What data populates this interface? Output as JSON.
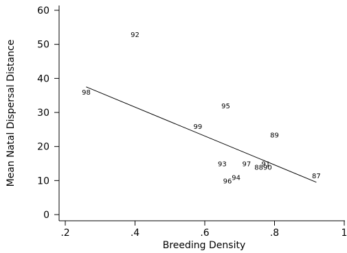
{
  "chart_data": {
    "type": "scatter",
    "title": "",
    "xlabel": "Breeding Density",
    "ylabel": "Mean Natal Dispersal Distance",
    "xlim": [
      0.2,
      1.0
    ],
    "ylim": [
      0,
      60
    ],
    "x_ticks": [
      0.2,
      0.4,
      0.6,
      0.8,
      1.0
    ],
    "x_tick_labels": [
      ".2",
      ".4",
      ".6",
      ".8",
      "1"
    ],
    "y_ticks": [
      0,
      10,
      20,
      30,
      40,
      50,
      60
    ],
    "y_tick_labels": [
      "0",
      "10",
      "20",
      "30",
      "40",
      "50",
      "60"
    ],
    "grid": false,
    "points": [
      {
        "label": "92",
        "x": 0.4,
        "y": 53
      },
      {
        "label": "98",
        "x": 0.26,
        "y": 36
      },
      {
        "label": "95",
        "x": 0.66,
        "y": 32
      },
      {
        "label": "99",
        "x": 0.58,
        "y": 26
      },
      {
        "label": "89",
        "x": 0.8,
        "y": 23.5
      },
      {
        "label": "93",
        "x": 0.65,
        "y": 15
      },
      {
        "label": "97",
        "x": 0.72,
        "y": 15
      },
      {
        "label": "91",
        "x": 0.775,
        "y": 15
      },
      {
        "label": "88",
        "x": 0.755,
        "y": 14
      },
      {
        "label": "90",
        "x": 0.78,
        "y": 14
      },
      {
        "label": "87",
        "x": 0.92,
        "y": 11.5
      },
      {
        "label": "94",
        "x": 0.69,
        "y": 11
      },
      {
        "label": "96",
        "x": 0.665,
        "y": 10
      }
    ],
    "fit_line": {
      "x": [
        0.26,
        0.92
      ],
      "y": [
        37.5,
        9.5
      ]
    }
  }
}
